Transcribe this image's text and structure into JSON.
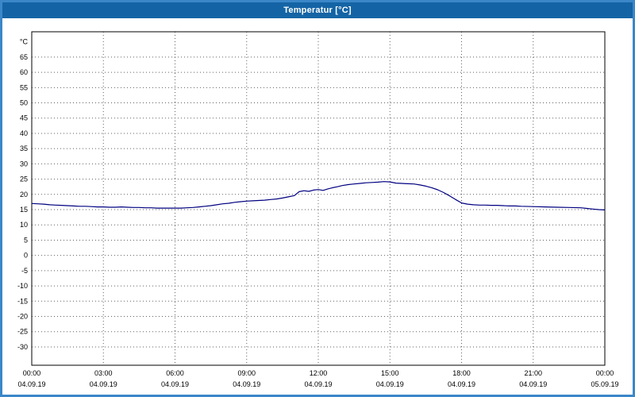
{
  "window": {
    "title": "Temperatur [°C]"
  },
  "colors": {
    "titlebar": "#1464a5",
    "window_border": "#3b87c8",
    "plot_background": "#ffffff",
    "plot_border": "#000000",
    "grid": "#606060",
    "line": "#000080",
    "tick_text": "#000000"
  },
  "chart_data": {
    "type": "line",
    "title": "Temperatur [°C]",
    "y_unit_label": "°C",
    "grid": "dotted",
    "legend": "none",
    "xlim_hours": [
      0,
      24
    ],
    "ylim": [
      -36,
      73.3
    ],
    "y_ticks": [
      65,
      60,
      55,
      50,
      45,
      40,
      35,
      30,
      25,
      20,
      15,
      10,
      5,
      0,
      -5,
      -10,
      -15,
      -20,
      -25,
      -30
    ],
    "x_ticks": [
      {
        "hour": 0,
        "time": "00:00",
        "date": "04.09.19"
      },
      {
        "hour": 3,
        "time": "03:00",
        "date": "04.09.19"
      },
      {
        "hour": 6,
        "time": "06:00",
        "date": "04.09.19"
      },
      {
        "hour": 9,
        "time": "09:00",
        "date": "04.09.19"
      },
      {
        "hour": 12,
        "time": "12:00",
        "date": "04.09.19"
      },
      {
        "hour": 15,
        "time": "15:00",
        "date": "04.09.19"
      },
      {
        "hour": 18,
        "time": "18:00",
        "date": "04.09.19"
      },
      {
        "hour": 21,
        "time": "21:00",
        "date": "04.09.19"
      },
      {
        "hour": 24,
        "time": "00:00",
        "date": "05.09.19"
      }
    ],
    "series": [
      {
        "name": "Temperatur",
        "color": "#000080",
        "points": [
          [
            0,
            17.0
          ],
          [
            0.25,
            16.9
          ],
          [
            0.5,
            16.8
          ],
          [
            0.75,
            16.6
          ],
          [
            1,
            16.5
          ],
          [
            1.25,
            16.4
          ],
          [
            1.5,
            16.3
          ],
          [
            1.75,
            16.2
          ],
          [
            2,
            16.1
          ],
          [
            2.25,
            16.1
          ],
          [
            2.5,
            16.0
          ],
          [
            2.75,
            15.9
          ],
          [
            3,
            15.9
          ],
          [
            3.25,
            15.8
          ],
          [
            3.5,
            15.8
          ],
          [
            3.75,
            15.9
          ],
          [
            4,
            15.8
          ],
          [
            4.25,
            15.7
          ],
          [
            4.5,
            15.7
          ],
          [
            4.75,
            15.6
          ],
          [
            5,
            15.6
          ],
          [
            5.25,
            15.5
          ],
          [
            5.5,
            15.5
          ],
          [
            5.75,
            15.5
          ],
          [
            6,
            15.5
          ],
          [
            6.25,
            15.5
          ],
          [
            6.5,
            15.6
          ],
          [
            6.75,
            15.7
          ],
          [
            7,
            15.9
          ],
          [
            7.25,
            16.1
          ],
          [
            7.5,
            16.3
          ],
          [
            7.75,
            16.6
          ],
          [
            8,
            16.9
          ],
          [
            8.25,
            17.1
          ],
          [
            8.5,
            17.4
          ],
          [
            8.75,
            17.6
          ],
          [
            9,
            17.8
          ],
          [
            9.25,
            17.9
          ],
          [
            9.5,
            18.0
          ],
          [
            9.75,
            18.1
          ],
          [
            10,
            18.3
          ],
          [
            10.25,
            18.5
          ],
          [
            10.5,
            18.8
          ],
          [
            10.75,
            19.2
          ],
          [
            11,
            19.6
          ],
          [
            11.2,
            20.9
          ],
          [
            11.4,
            21.2
          ],
          [
            11.6,
            21.0
          ],
          [
            11.8,
            21.4
          ],
          [
            12,
            21.6
          ],
          [
            12.2,
            21.3
          ],
          [
            12.4,
            21.8
          ],
          [
            12.6,
            22.2
          ],
          [
            12.8,
            22.5
          ],
          [
            13,
            22.9
          ],
          [
            13.25,
            23.2
          ],
          [
            13.5,
            23.4
          ],
          [
            13.75,
            23.6
          ],
          [
            14,
            23.8
          ],
          [
            14.25,
            23.9
          ],
          [
            14.5,
            24.0
          ],
          [
            14.75,
            24.2
          ],
          [
            15,
            24.1
          ],
          [
            15.25,
            23.7
          ],
          [
            15.5,
            23.6
          ],
          [
            15.75,
            23.5
          ],
          [
            16,
            23.4
          ],
          [
            16.25,
            23.1
          ],
          [
            16.5,
            22.7
          ],
          [
            16.75,
            22.2
          ],
          [
            17,
            21.5
          ],
          [
            17.25,
            20.6
          ],
          [
            17.5,
            19.5
          ],
          [
            17.75,
            18.3
          ],
          [
            18,
            17.2
          ],
          [
            18.25,
            16.8
          ],
          [
            18.5,
            16.6
          ],
          [
            18.75,
            16.5
          ],
          [
            19,
            16.5
          ],
          [
            19.25,
            16.4
          ],
          [
            19.5,
            16.4
          ],
          [
            19.75,
            16.3
          ],
          [
            20,
            16.2
          ],
          [
            20.25,
            16.2
          ],
          [
            20.5,
            16.1
          ],
          [
            21,
            16.0
          ],
          [
            21.5,
            15.9
          ],
          [
            22,
            15.8
          ],
          [
            22.5,
            15.7
          ],
          [
            23,
            15.6
          ],
          [
            23.25,
            15.4
          ],
          [
            23.5,
            15.2
          ],
          [
            23.75,
            15.0
          ],
          [
            24,
            14.9
          ]
        ]
      }
    ]
  }
}
